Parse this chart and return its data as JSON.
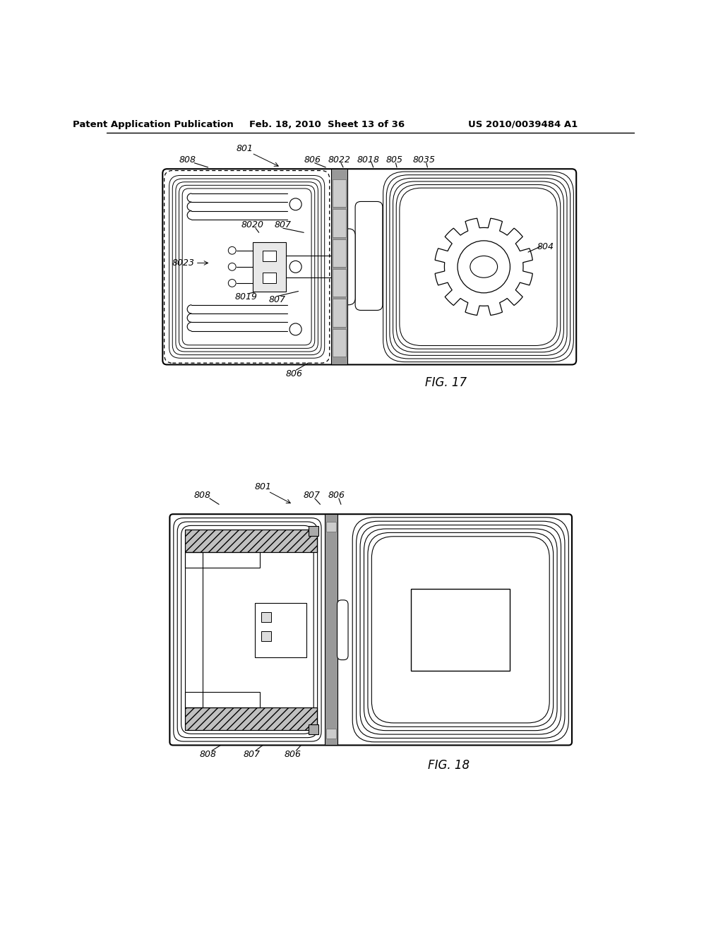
{
  "header_left": "Patent Application Publication",
  "header_mid": "Feb. 18, 2010  Sheet 13 of 36",
  "header_right": "US 2010/0039484 A1",
  "fig17_label": "FIG. 17",
  "fig18_label": "FIG. 18",
  "bg_color": "#ffffff"
}
